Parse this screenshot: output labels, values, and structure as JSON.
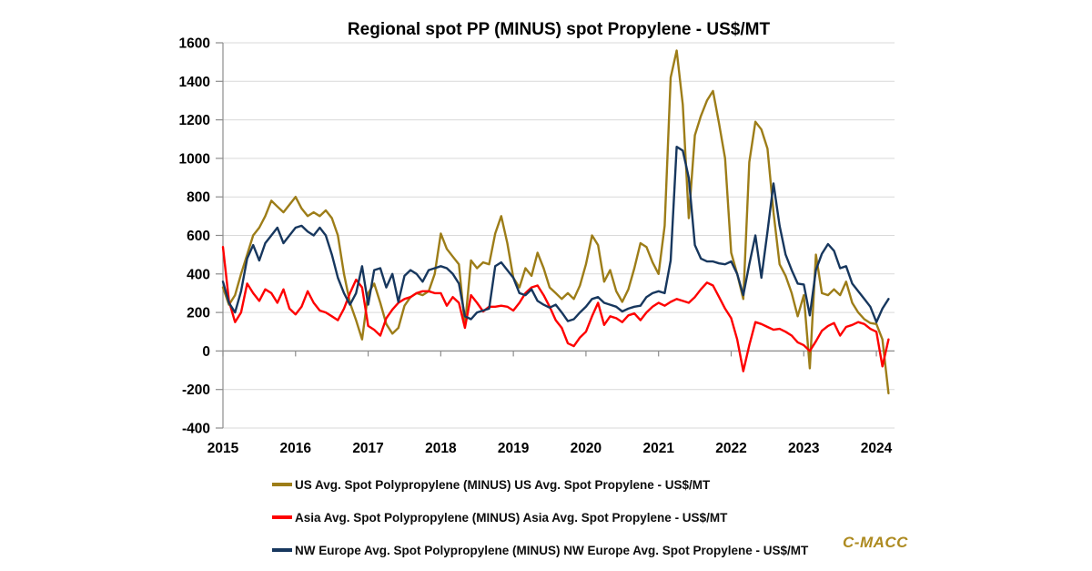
{
  "chart": {
    "title": "Regional spot PP (MINUS) spot Propylene - US$/MT",
    "branding": "C-MACC",
    "branding_color": "#AD8A1F"
  },
  "chart_data": {
    "type": "line",
    "title": "Regional spot PP (MINUS) spot Propylene - US$/MT",
    "xlabel": "",
    "ylabel": "",
    "grid": true,
    "legend_position": "bottom-left",
    "xlim": [
      2015,
      2024.25
    ],
    "ylim": [
      -400,
      1600
    ],
    "x_ticks": [
      2015,
      2016,
      2017,
      2018,
      2019,
      2020,
      2021,
      2022,
      2023,
      2024
    ],
    "y_ticks": [
      -400,
      -200,
      0,
      200,
      400,
      600,
      800,
      1000,
      1200,
      1400,
      1600
    ],
    "x_start": 2015.0,
    "x_step_years": 0.0833333,
    "x_unit": "monthly from Jan 2015 to Mar 2024",
    "axis_color": "#8c8c8c",
    "grid_color": "#d9d9d9",
    "series": [
      {
        "name": "US Avg. Spot Polypropylene (MINUS) US Avg. Spot Propylene - US$/MT",
        "color": "#9D7D18",
        "values": [
          330,
          240,
          290,
          400,
          500,
          600,
          640,
          700,
          780,
          750,
          720,
          760,
          800,
          740,
          700,
          720,
          700,
          730,
          690,
          600,
          400,
          250,
          160,
          60,
          300,
          350,
          250,
          140,
          90,
          120,
          235,
          280,
          300,
          290,
          310,
          400,
          610,
          530,
          490,
          450,
          130,
          470,
          430,
          460,
          450,
          610,
          700,
          560,
          380,
          330,
          430,
          390,
          510,
          430,
          330,
          300,
          270,
          300,
          270,
          340,
          450,
          600,
          550,
          360,
          420,
          310,
          255,
          320,
          430,
          560,
          540,
          460,
          400,
          650,
          1420,
          1560,
          1280,
          690,
          1120,
          1220,
          1300,
          1350,
          1180,
          1000,
          510,
          400,
          270,
          980,
          1190,
          1150,
          1050,
          720,
          450,
          390,
          300,
          180,
          290,
          -90,
          500,
          300,
          290,
          320,
          290,
          360,
          250,
          200,
          165,
          145,
          140,
          60,
          -220
        ]
      },
      {
        "name": "Asia Avg. Spot Polypropylene (MINUS) Asia Avg. Spot Propylene - US$/MT",
        "color": "#FE0000",
        "values": [
          540,
          260,
          150,
          200,
          350,
          300,
          260,
          320,
          300,
          250,
          320,
          220,
          190,
          230,
          310,
          250,
          210,
          200,
          180,
          160,
          220,
          300,
          370,
          330,
          130,
          110,
          80,
          170,
          215,
          250,
          270,
          280,
          300,
          310,
          310,
          300,
          300,
          235,
          280,
          250,
          120,
          290,
          250,
          205,
          230,
          230,
          235,
          230,
          210,
          250,
          300,
          330,
          340,
          290,
          230,
          160,
          120,
          40,
          25,
          70,
          100,
          180,
          250,
          135,
          180,
          170,
          150,
          185,
          195,
          160,
          200,
          230,
          250,
          235,
          255,
          270,
          260,
          250,
          280,
          320,
          355,
          340,
          280,
          220,
          170,
          60,
          -105,
          30,
          150,
          140,
          125,
          110,
          115,
          100,
          80,
          45,
          30,
          0,
          50,
          105,
          130,
          145,
          80,
          125,
          135,
          150,
          140,
          115,
          100,
          -80,
          60
        ]
      },
      {
        "name": "NW Europe Avg. Spot Polypropylene (MINUS) NW Europe Avg. Spot Propylene - US$/MT",
        "color": "#17375E",
        "values": [
          360,
          250,
          200,
          310,
          480,
          550,
          470,
          560,
          600,
          640,
          560,
          600,
          640,
          650,
          620,
          600,
          640,
          600,
          500,
          380,
          300,
          240,
          300,
          440,
          240,
          420,
          430,
          330,
          400,
          255,
          390,
          420,
          400,
          360,
          420,
          430,
          440,
          430,
          400,
          350,
          180,
          165,
          200,
          210,
          220,
          440,
          460,
          420,
          380,
          300,
          290,
          320,
          260,
          240,
          225,
          240,
          200,
          155,
          165,
          200,
          230,
          270,
          280,
          250,
          240,
          230,
          205,
          220,
          230,
          235,
          280,
          300,
          310,
          300,
          470,
          1060,
          1040,
          900,
          550,
          480,
          465,
          465,
          455,
          450,
          465,
          400,
          290,
          450,
          600,
          380,
          620,
          870,
          650,
          500,
          420,
          350,
          345,
          185,
          420,
          505,
          555,
          520,
          430,
          440,
          350,
          310,
          270,
          230,
          150,
          220,
          270
        ]
      }
    ]
  }
}
